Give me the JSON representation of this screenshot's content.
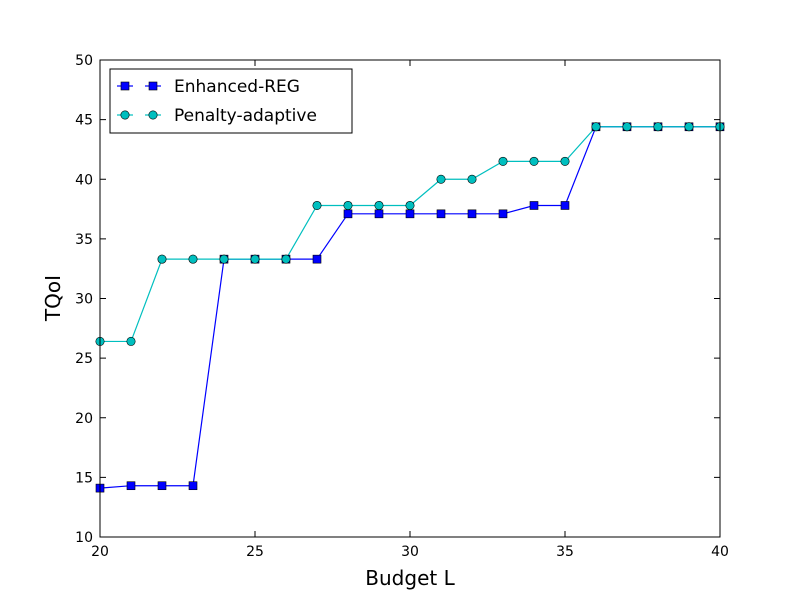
{
  "chart_data": {
    "type": "line",
    "xlabel": "Budget L",
    "ylabel": "TQoI",
    "xlim": [
      20,
      40
    ],
    "ylim": [
      10,
      50
    ],
    "xticks": [
      20,
      25,
      30,
      35,
      40
    ],
    "yticks": [
      10,
      15,
      20,
      25,
      30,
      35,
      40,
      45,
      50
    ],
    "grid": false,
    "legend_position": "top-left",
    "x": [
      20,
      21,
      22,
      23,
      24,
      25,
      26,
      27,
      28,
      29,
      30,
      31,
      32,
      33,
      34,
      35,
      36,
      37,
      38,
      39,
      40
    ],
    "series": [
      {
        "name": "Enhanced-REG",
        "color": "#0000ff",
        "marker": "square",
        "values": [
          14.1,
          14.3,
          14.3,
          14.3,
          33.3,
          33.3,
          33.3,
          33.3,
          37.1,
          37.1,
          37.1,
          37.1,
          37.1,
          37.1,
          37.8,
          37.8,
          44.4,
          44.4,
          44.4,
          44.4,
          44.4
        ]
      },
      {
        "name": "Penalty-adaptive",
        "color": "#00bfbf",
        "marker": "circle",
        "values": [
          26.4,
          26.4,
          33.3,
          33.3,
          33.3,
          33.3,
          33.3,
          37.8,
          37.8,
          37.8,
          37.8,
          40.0,
          40.0,
          41.5,
          41.5,
          41.5,
          44.4,
          44.4,
          44.4,
          44.4,
          44.4
        ]
      }
    ]
  }
}
